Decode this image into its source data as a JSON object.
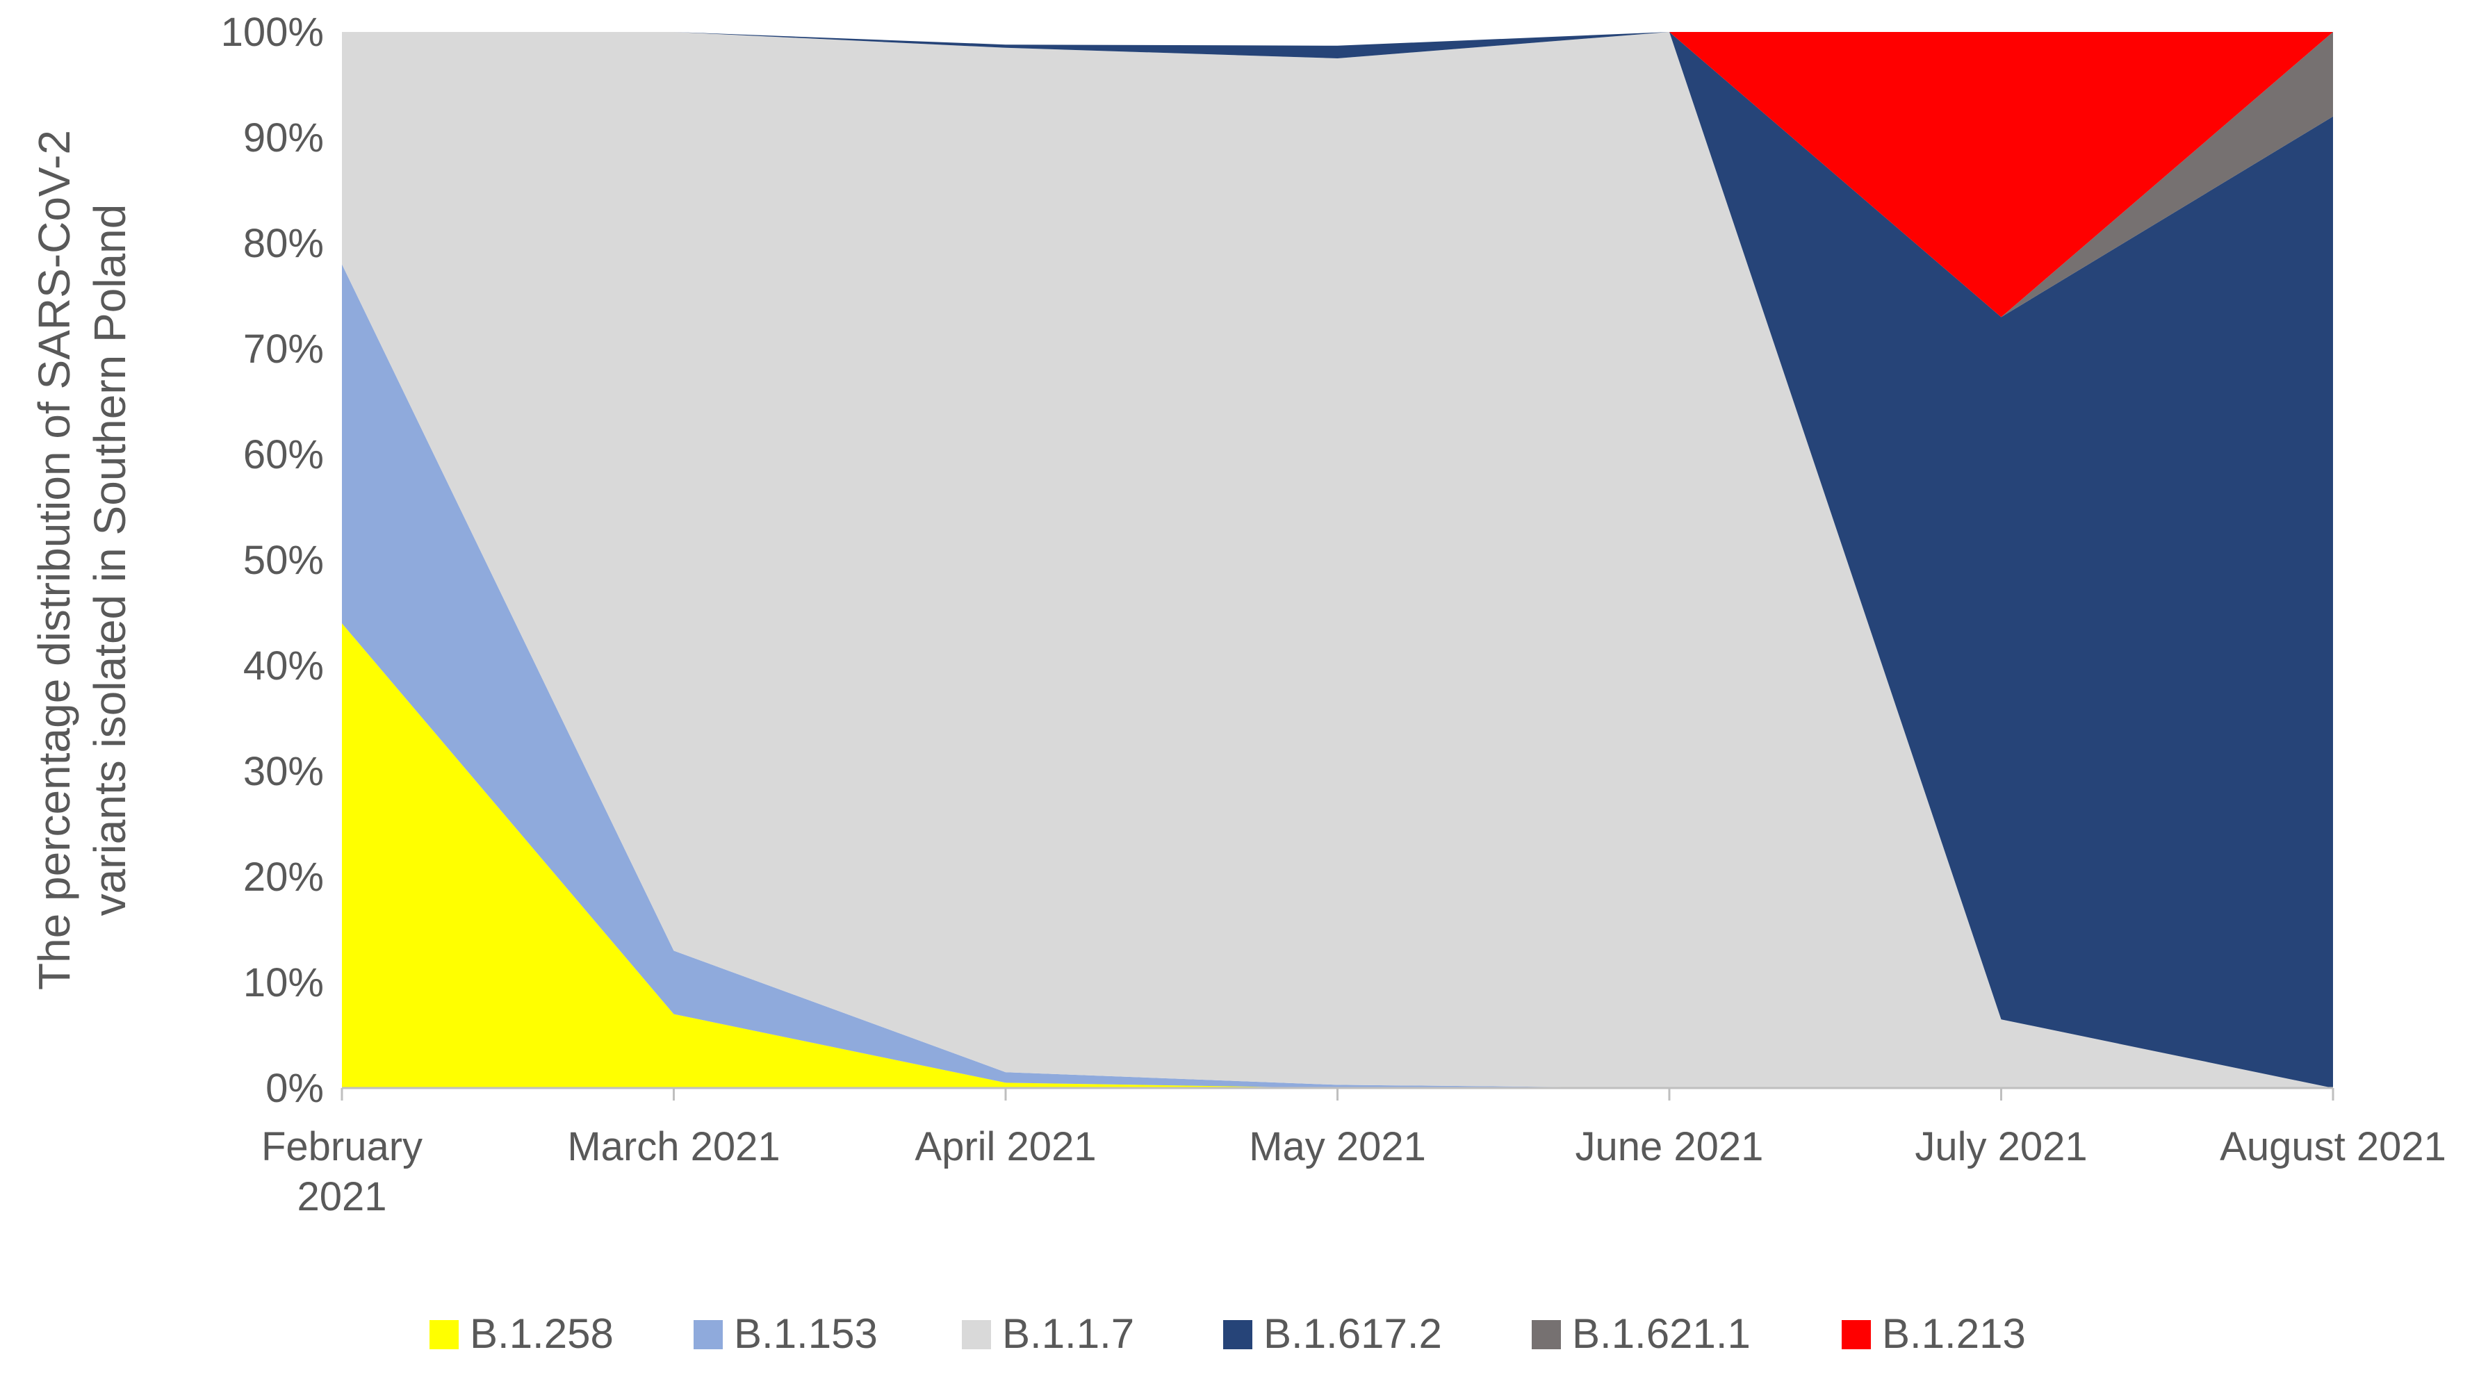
{
  "chart_data": {
    "type": "area",
    "stacked": true,
    "percent": true,
    "title": "",
    "xlabel": "",
    "ylabel": [
      "The percentage distribution of SARS-CoV-2",
      "variants isolated in Southern Poland"
    ],
    "ylim": [
      0,
      100
    ],
    "yticks": [
      "0%",
      "10%",
      "20%",
      "30%",
      "40%",
      "50%",
      "60%",
      "70%",
      "80%",
      "90%",
      "100%"
    ],
    "categories": [
      [
        "February",
        "2021"
      ],
      [
        "March 2021"
      ],
      [
        "April 2021"
      ],
      [
        "May 2021"
      ],
      [
        "June 2021"
      ],
      [
        "July 2021"
      ],
      [
        "August 2021"
      ]
    ],
    "legend_position": "bottom",
    "grid": false,
    "series": [
      {
        "name": "B.1.258",
        "color": "#ffff00",
        "values": [
          44,
          7,
          0.5,
          0,
          0,
          0,
          0
        ]
      },
      {
        "name": "B.1.153",
        "color": "#8faadc",
        "values": [
          34,
          6,
          1,
          0.3,
          0,
          0,
          0
        ]
      },
      {
        "name": "B.1.1.7",
        "color": "#d9d9d9",
        "values": [
          22,
          87,
          97,
          97.2,
          100,
          6.5,
          0
        ]
      },
      {
        "name": "B.1.617.2",
        "color": "#264478",
        "values": [
          0,
          0,
          0.3,
          1.2,
          0,
          66.5,
          92
        ]
      },
      {
        "name": "B.1.621.1",
        "color": "#767171",
        "values": [
          0,
          0,
          0,
          0,
          0,
          0,
          8
        ]
      },
      {
        "name": "B.1.213",
        "color": "#ff0000",
        "values": [
          0,
          0,
          0,
          0,
          0,
          27,
          0
        ]
      }
    ]
  }
}
